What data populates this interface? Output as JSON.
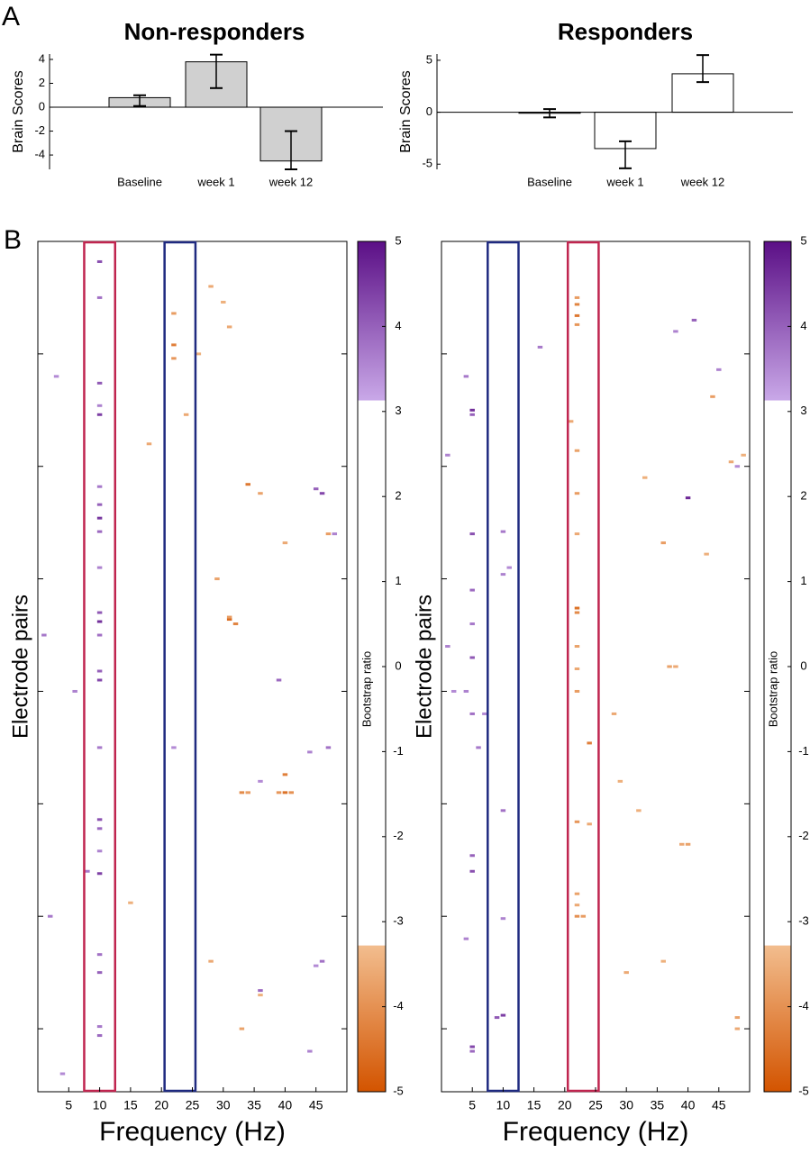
{
  "panel_labels": [
    "A",
    "B"
  ],
  "chart_data": [
    {
      "type": "bar",
      "title": "Non-responders",
      "ylabel": "Brain Scores",
      "color": "#d0d0d0",
      "categories": [
        "Baseline",
        "week 1",
        "week 12"
      ],
      "values": [
        0.8,
        3.8,
        -4.5
      ],
      "lower": [
        0.1,
        1.6,
        -5.2
      ],
      "upper": [
        1.0,
        4.4,
        -2.0
      ],
      "ylim": [
        -5.2,
        4.45
      ],
      "yticks": [
        -4,
        -2,
        0,
        2,
        4
      ]
    },
    {
      "type": "bar",
      "title": "Responders",
      "ylabel": "Brain Scores",
      "color": "#ffffff",
      "categories": [
        "Baseline",
        "week 1",
        "week 12"
      ],
      "values": [
        -0.1,
        -3.5,
        3.7
      ],
      "lower": [
        -0.5,
        -5.4,
        2.9
      ],
      "upper": [
        0.3,
        -2.8,
        5.5
      ],
      "ylim": [
        -5.5,
        5.6
      ],
      "yticks": [
        -5,
        0,
        5
      ]
    },
    {
      "type": "heatmap",
      "xlabel": "Frequency (Hz)",
      "ylabel": "Electrode pairs",
      "xlim": [
        0,
        50
      ],
      "xticks": [
        5,
        10,
        15,
        20,
        25,
        30,
        35,
        40,
        45
      ],
      "ylim": [
        0,
        378
      ],
      "yticks": [
        50,
        100,
        150,
        200,
        250,
        300,
        350
      ],
      "highlights": [
        {
          "x": [
            7.5,
            12.5
          ],
          "color": "#c0254f"
        },
        {
          "x": [
            20.5,
            25.5
          ],
          "color": "#1f2a80"
        }
      ],
      "colorbar": {
        "label": "Bootstrap ratio",
        "lim": [
          -5,
          5
        ],
        "ticks": [
          -5,
          -4,
          -3,
          -2,
          -1,
          0,
          1,
          2,
          3,
          4,
          5
        ],
        "threshold": [
          -3.28,
          3.13
        ],
        "colors": [
          "#d35400",
          "#f2bd8e",
          "#c9a8e8",
          "#5b0f86"
        ]
      },
      "points": [
        [
          10,
          9,
          4.2
        ],
        [
          10,
          25,
          3.8
        ],
        [
          10,
          63,
          4.1
        ],
        [
          10,
          73,
          3.6
        ],
        [
          10,
          77,
          4.4
        ],
        [
          10,
          109,
          3.7
        ],
        [
          10,
          117,
          4.0
        ],
        [
          10,
          123,
          4.5
        ],
        [
          10,
          129,
          3.9
        ],
        [
          10,
          145,
          3.6
        ],
        [
          10,
          165,
          4.1
        ],
        [
          10,
          169,
          4.6
        ],
        [
          10,
          175,
          3.8
        ],
        [
          10,
          191,
          4.0
        ],
        [
          10,
          195,
          4.3
        ],
        [
          10,
          225,
          3.7
        ],
        [
          10,
          257,
          4.2
        ],
        [
          10,
          261,
          3.9
        ],
        [
          10,
          271,
          3.6
        ],
        [
          10,
          281,
          4.4
        ],
        [
          10,
          317,
          3.8
        ],
        [
          10,
          325,
          4.0
        ],
        [
          10,
          349,
          3.7
        ],
        [
          10,
          353,
          3.9
        ],
        [
          3,
          60,
          3.5
        ],
        [
          1,
          175,
          3.7
        ],
        [
          6,
          200,
          3.6
        ],
        [
          45,
          110,
          4.0
        ],
        [
          46,
          112,
          4.3
        ],
        [
          47,
          225,
          3.8
        ],
        [
          44,
          227,
          3.6
        ],
        [
          39,
          195,
          3.9
        ],
        [
          36,
          240,
          3.5
        ],
        [
          48,
          130,
          3.6
        ],
        [
          22,
          225,
          3.5
        ],
        [
          2,
          300,
          3.7
        ],
        [
          46,
          320,
          3.8
        ],
        [
          44,
          360,
          3.6
        ],
        [
          45,
          322,
          3.5
        ],
        [
          36,
          333,
          3.9
        ],
        [
          8,
          280,
          3.7
        ],
        [
          4,
          370,
          3.5
        ],
        [
          31,
          168,
          -4.6
        ],
        [
          32,
          170,
          -4.2
        ],
        [
          31,
          167,
          -3.8
        ],
        [
          40,
          245,
          -4.5
        ],
        [
          41,
          245,
          -4.0
        ],
        [
          39,
          245,
          -3.9
        ],
        [
          40,
          237,
          -4.3
        ],
        [
          33,
          245,
          -4.1
        ],
        [
          34,
          245,
          -3.8
        ],
        [
          31,
          38,
          -3.6
        ],
        [
          30,
          27,
          -3.5
        ],
        [
          28,
          20,
          -3.6
        ],
        [
          34,
          108,
          -4.4
        ],
        [
          36,
          112,
          -3.7
        ],
        [
          24,
          77,
          -3.6
        ],
        [
          22,
          32,
          -3.8
        ],
        [
          22,
          46,
          -4.3
        ],
        [
          22,
          52,
          -3.9
        ],
        [
          18,
          90,
          -3.6
        ],
        [
          36,
          335,
          -3.5
        ],
        [
          33,
          350,
          -3.7
        ],
        [
          28,
          320,
          -3.6
        ],
        [
          15,
          294,
          -3.5
        ],
        [
          47,
          130,
          -3.8
        ],
        [
          40,
          134,
          -3.6
        ],
        [
          26,
          50,
          -3.5
        ],
        [
          29,
          150,
          -3.7
        ]
      ]
    },
    {
      "type": "heatmap",
      "xlabel": "Frequency (Hz)",
      "ylabel": "Electrode pairs",
      "xlim": [
        0,
        50
      ],
      "xticks": [
        5,
        10,
        15,
        20,
        25,
        30,
        35,
        40,
        45
      ],
      "ylim": [
        0,
        378
      ],
      "yticks": [
        50,
        100,
        150,
        200,
        250,
        300,
        350
      ],
      "highlights": [
        {
          "x": [
            7.5,
            12.5
          ],
          "color": "#1f2a80"
        },
        {
          "x": [
            20.5,
            25.5
          ],
          "color": "#c0254f"
        }
      ],
      "colorbar": {
        "label": "Bootstrap ratio",
        "lim": [
          -5,
          5
        ],
        "ticks": [
          -5,
          -4,
          -3,
          -2,
          -1,
          0,
          1,
          2,
          3,
          4,
          5
        ],
        "threshold": [
          -3.28,
          3.13
        ],
        "colors": [
          "#d35400",
          "#f2bd8e",
          "#c9a8e8",
          "#5b0f86"
        ]
      },
      "points": [
        [
          5,
          75,
          4.6
        ],
        [
          5,
          77,
          4.0
        ],
        [
          4,
          60,
          3.7
        ],
        [
          5,
          130,
          4.2
        ],
        [
          5,
          155,
          3.9
        ],
        [
          5,
          170,
          3.7
        ],
        [
          5,
          185,
          4.1
        ],
        [
          4,
          200,
          3.6
        ],
        [
          5,
          210,
          3.8
        ],
        [
          6,
          225,
          3.7
        ],
        [
          5,
          273,
          4.0
        ],
        [
          5,
          280,
          4.2
        ],
        [
          4,
          310,
          3.6
        ],
        [
          5,
          358,
          4.3
        ],
        [
          5,
          360,
          3.9
        ],
        [
          1,
          180,
          3.6
        ],
        [
          2,
          200,
          3.5
        ],
        [
          10,
          129,
          3.7
        ],
        [
          10,
          148,
          3.6
        ],
        [
          11,
          145,
          3.5
        ],
        [
          10,
          253,
          3.8
        ],
        [
          10,
          301,
          3.6
        ],
        [
          10,
          344,
          4.4
        ],
        [
          9,
          345,
          4.1
        ],
        [
          7,
          210,
          3.5
        ],
        [
          16,
          47,
          3.7
        ],
        [
          40,
          114,
          4.7
        ],
        [
          38,
          40,
          3.6
        ],
        [
          41,
          35,
          4.0
        ],
        [
          45,
          57,
          3.6
        ],
        [
          48,
          100,
          3.5
        ],
        [
          1,
          95,
          3.6
        ],
        [
          22,
          25,
          -3.8
        ],
        [
          22,
          28,
          -4.2
        ],
        [
          22,
          33,
          -4.4
        ],
        [
          22,
          37,
          -3.9
        ],
        [
          21,
          80,
          -3.6
        ],
        [
          22,
          93,
          -3.7
        ],
        [
          22,
          112,
          -3.8
        ],
        [
          22,
          130,
          -3.6
        ],
        [
          22,
          163,
          -4.5
        ],
        [
          22,
          165,
          -4.1
        ],
        [
          22,
          180,
          -3.7
        ],
        [
          22,
          190,
          -3.6
        ],
        [
          22,
          200,
          -3.8
        ],
        [
          22,
          258,
          -3.9
        ],
        [
          22,
          290,
          -3.7
        ],
        [
          22,
          295,
          -3.6
        ],
        [
          22,
          300,
          -4.0
        ],
        [
          23,
          300,
          -3.8
        ],
        [
          24,
          223,
          -4.3
        ],
        [
          24,
          259,
          -3.6
        ],
        [
          36,
          134,
          -3.8
        ],
        [
          37,
          189,
          -3.7
        ],
        [
          38,
          189,
          -3.6
        ],
        [
          29,
          240,
          -3.5
        ],
        [
          30,
          325,
          -3.6
        ],
        [
          32,
          253,
          -3.5
        ],
        [
          40,
          268,
          -3.7
        ],
        [
          39,
          268,
          -3.6
        ],
        [
          44,
          69,
          -3.8
        ],
        [
          43,
          139,
          -3.5
        ],
        [
          47,
          98,
          -3.6
        ],
        [
          49,
          95,
          -3.5
        ],
        [
          48,
          345,
          -3.7
        ],
        [
          48,
          350,
          -3.6
        ],
        [
          33,
          105,
          -3.5
        ],
        [
          28,
          210,
          -3.6
        ],
        [
          36,
          320,
          -3.5
        ]
      ]
    }
  ]
}
